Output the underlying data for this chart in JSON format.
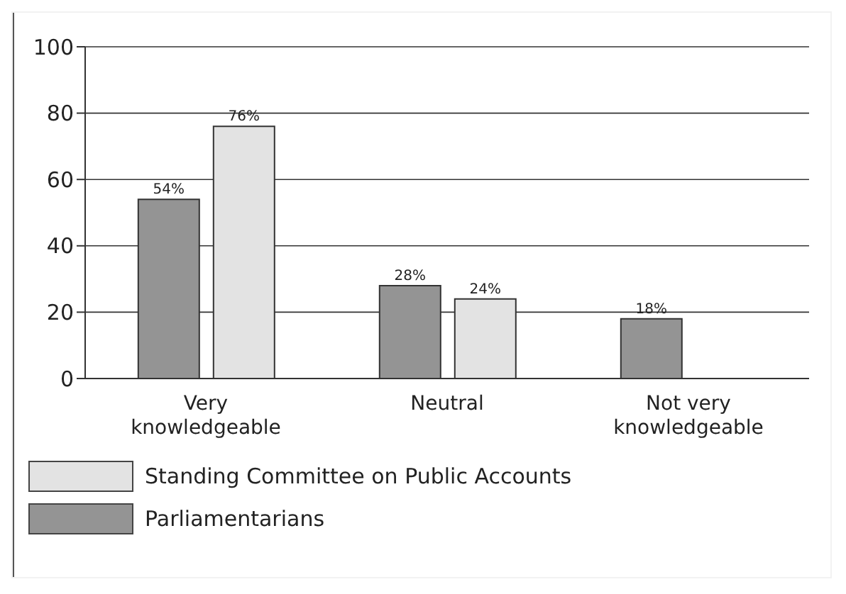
{
  "chart_data": {
    "type": "bar",
    "categories": [
      "Very knowledgeable",
      "Neutral",
      "Not very knowledgeable"
    ],
    "series": [
      {
        "name": "Parliamentarians",
        "color": "#949494",
        "values": [
          54,
          28,
          18
        ],
        "value_labels": [
          "54%",
          "28%",
          "18%"
        ]
      },
      {
        "name": "Standing Committee on Public Accounts",
        "color": "#e3e3e3",
        "values": [
          76,
          24,
          null
        ],
        "value_labels": [
          "76%",
          "24%",
          null
        ]
      }
    ],
    "ylim": [
      0,
      100
    ],
    "yticks": [
      0,
      20,
      40,
      60,
      80,
      100
    ],
    "grid": "y",
    "legend": "bottom"
  }
}
